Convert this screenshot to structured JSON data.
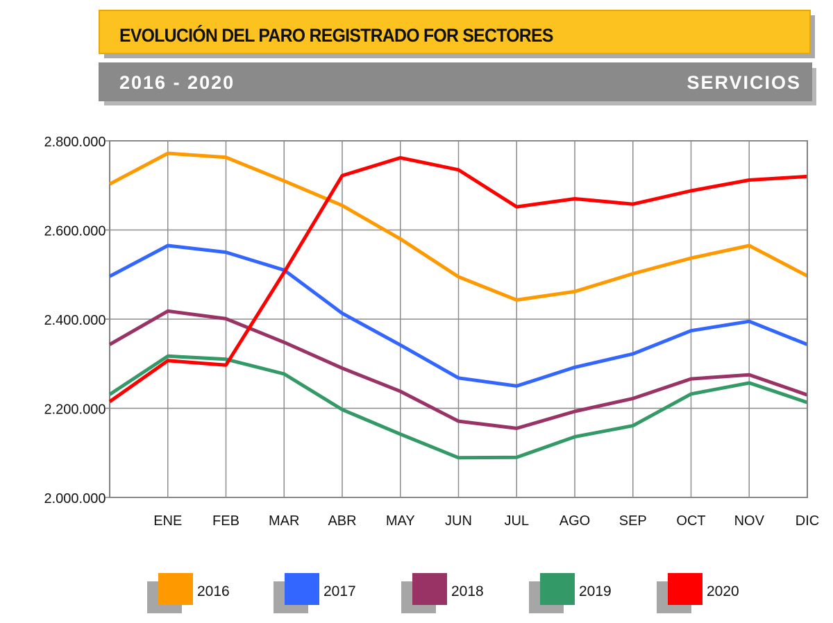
{
  "header": {
    "title": "EVOLUCIÓN DEL PARO REGISTRADO FOR SECTORES",
    "period": "2016 - 2020",
    "sector": "SERVICIOS"
  },
  "colors": {
    "2016": "#ff9900",
    "2017": "#3366ff",
    "2018": "#993366",
    "2019": "#339966",
    "2020": "#ff0000"
  },
  "legend": [
    {
      "label": "2016",
      "color": "#ff9900"
    },
    {
      "label": "2017",
      "color": "#3366ff"
    },
    {
      "label": "2018",
      "color": "#993366"
    },
    {
      "label": "2019",
      "color": "#339966"
    },
    {
      "label": "2020",
      "color": "#ff0000"
    }
  ],
  "chart_data": {
    "type": "line",
    "title": "EVOLUCIÓN DEL PARO REGISTRADO FOR SECTORES",
    "categories": [
      "",
      "ENE",
      "FEB",
      "MAR",
      "ABR",
      "MAY",
      "JUN",
      "JUL",
      "AGO",
      "SEP",
      "OCT",
      "NOV",
      "DIC"
    ],
    "ylim": [
      2000000,
      2800000
    ],
    "yticks": [
      2000000,
      2200000,
      2400000,
      2600000,
      2800000
    ],
    "ytick_labels": [
      "2.000.000",
      "2.200.000",
      "2.400.000",
      "2.600.000",
      "2.800.000"
    ],
    "grid": true,
    "legend_position": "bottom",
    "series": [
      {
        "name": "2016",
        "color": "#ff9900",
        "values": [
          2703000,
          2772000,
          2763000,
          2710000,
          2655000,
          2580000,
          2495000,
          2443000,
          2462000,
          2502000,
          2537000,
          2565000,
          2497000
        ]
      },
      {
        "name": "2017",
        "color": "#3366ff",
        "values": [
          2496000,
          2565000,
          2550000,
          2510000,
          2413000,
          2342000,
          2268000,
          2250000,
          2292000,
          2322000,
          2374000,
          2395000,
          2343000
        ]
      },
      {
        "name": "2018",
        "color": "#993366",
        "values": [
          2343000,
          2418000,
          2401000,
          2348000,
          2290000,
          2238000,
          2171000,
          2155000,
          2193000,
          2222000,
          2266000,
          2275000,
          2230000
        ]
      },
      {
        "name": "2019",
        "color": "#339966",
        "values": [
          2231000,
          2317000,
          2310000,
          2277000,
          2197000,
          2142000,
          2089000,
          2090000,
          2136000,
          2161000,
          2232000,
          2257000,
          2213000
        ]
      },
      {
        "name": "2020",
        "color": "#ff0000",
        "values": [
          2215000,
          2307000,
          2297000,
          2505000,
          2722000,
          2762000,
          2735000,
          2652000,
          2670000,
          2658000,
          2688000,
          2712000,
          2720000
        ]
      }
    ]
  }
}
